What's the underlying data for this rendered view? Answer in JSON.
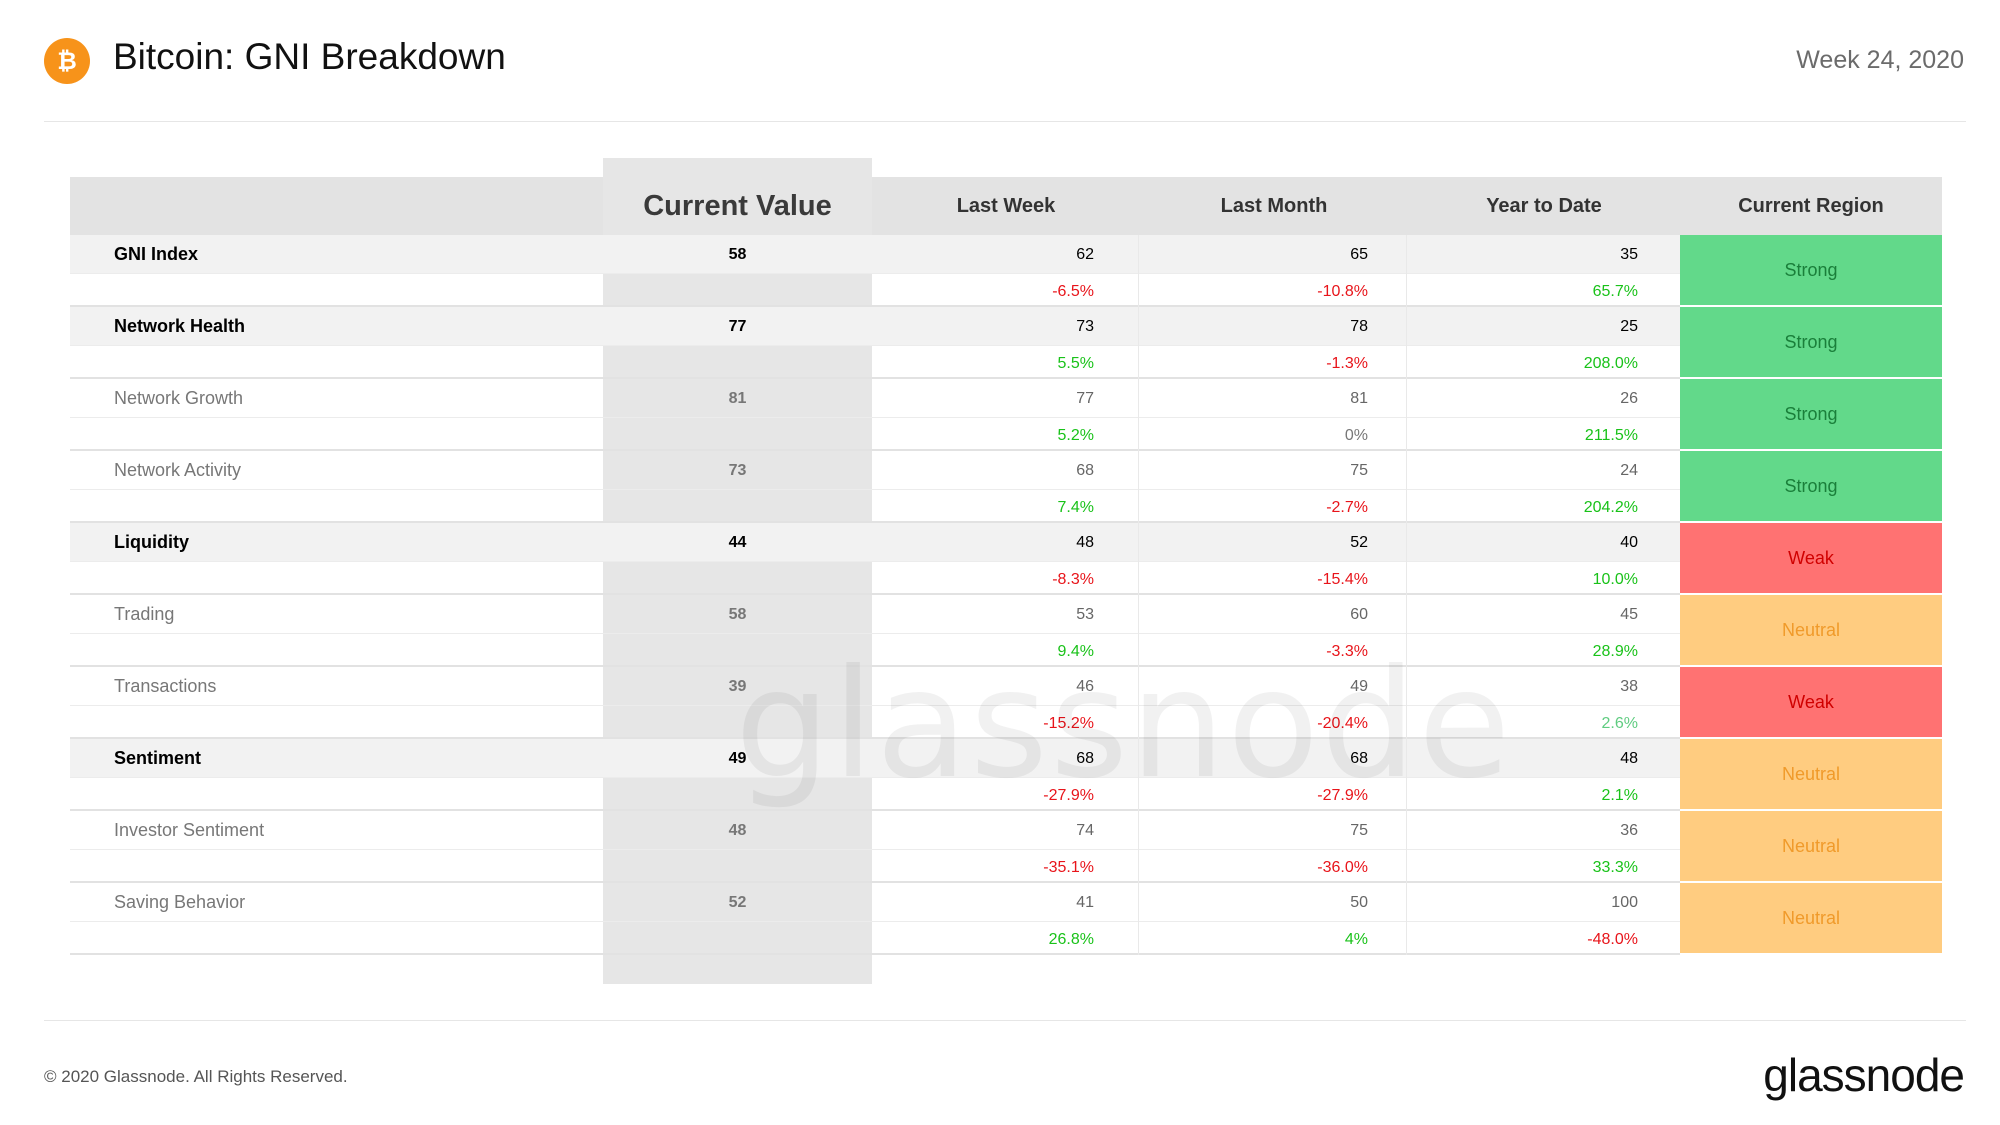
{
  "header": {
    "title": "Bitcoin: GNI Breakdown",
    "week": "Week 24, 2020",
    "logo_icon": "bitcoin-icon"
  },
  "columns": {
    "current_value": "Current Value",
    "last_week": "Last Week",
    "last_month": "Last Month",
    "year_to_date": "Year to Date",
    "current_region": "Current Region"
  },
  "rows": [
    {
      "name": "GNI Index",
      "level": "main",
      "current": "58",
      "lw": "62",
      "lw_chg": "-6.5%",
      "lm": "65",
      "lm_chg": "-10.8%",
      "ytd": "35",
      "ytd_chg": "65.7%",
      "region": "Strong"
    },
    {
      "name": "Network Health",
      "level": "main",
      "current": "77",
      "lw": "73",
      "lw_chg": "5.5%",
      "lm": "78",
      "lm_chg": "-1.3%",
      "ytd": "25",
      "ytd_chg": "208.0%",
      "region": "Strong"
    },
    {
      "name": "Network Growth",
      "level": "sub",
      "current": "81",
      "lw": "77",
      "lw_chg": "5.2%",
      "lm": "81",
      "lm_chg": "0%",
      "ytd": "26",
      "ytd_chg": "211.5%",
      "region": "Strong"
    },
    {
      "name": "Network Activity",
      "level": "sub",
      "current": "73",
      "lw": "68",
      "lw_chg": "7.4%",
      "lm": "75",
      "lm_chg": "-2.7%",
      "ytd": "24",
      "ytd_chg": "204.2%",
      "region": "Strong"
    },
    {
      "name": "Liquidity",
      "level": "main",
      "current": "44",
      "lw": "48",
      "lw_chg": "-8.3%",
      "lm": "52",
      "lm_chg": "-15.4%",
      "ytd": "40",
      "ytd_chg": "10.0%",
      "region": "Weak"
    },
    {
      "name": "Trading",
      "level": "sub",
      "current": "58",
      "lw": "53",
      "lw_chg": "9.4%",
      "lm": "60",
      "lm_chg": "-3.3%",
      "ytd": "45",
      "ytd_chg": "28.9%",
      "region": "Neutral"
    },
    {
      "name": "Transactions",
      "level": "sub",
      "current": "39",
      "lw": "46",
      "lw_chg": "-15.2%",
      "lm": "49",
      "lm_chg": "-20.4%",
      "ytd": "38",
      "ytd_chg": "2.6%",
      "region": "Weak"
    },
    {
      "name": "Sentiment",
      "level": "main",
      "current": "49",
      "lw": "68",
      "lw_chg": "-27.9%",
      "lm": "68",
      "lm_chg": "-27.9%",
      "ytd": "48",
      "ytd_chg": "2.1%",
      "region": "Neutral"
    },
    {
      "name": "Investor Sentiment",
      "level": "sub",
      "current": "48",
      "lw": "74",
      "lw_chg": "-35.1%",
      "lm": "75",
      "lm_chg": "-36.0%",
      "ytd": "36",
      "ytd_chg": "33.3%",
      "region": "Neutral"
    },
    {
      "name": "Saving Behavior",
      "level": "sub",
      "current": "52",
      "lw": "41",
      "lw_chg": "26.8%",
      "lm": "50",
      "lm_chg": "4%",
      "ytd": "100",
      "ytd_chg": "-48.0%",
      "region": "Neutral"
    }
  ],
  "watermark": "glassnode",
  "footer": {
    "copyright": "© 2020 Glassnode. All Rights Reserved.",
    "brand": "glassnode"
  },
  "colors": {
    "strong": "#62d98a",
    "weak": "#ff7272",
    "neutral": "#ffcc80",
    "positive": "#19c219",
    "negative": "#e8141a",
    "bitcoin": "#f7931a"
  }
}
